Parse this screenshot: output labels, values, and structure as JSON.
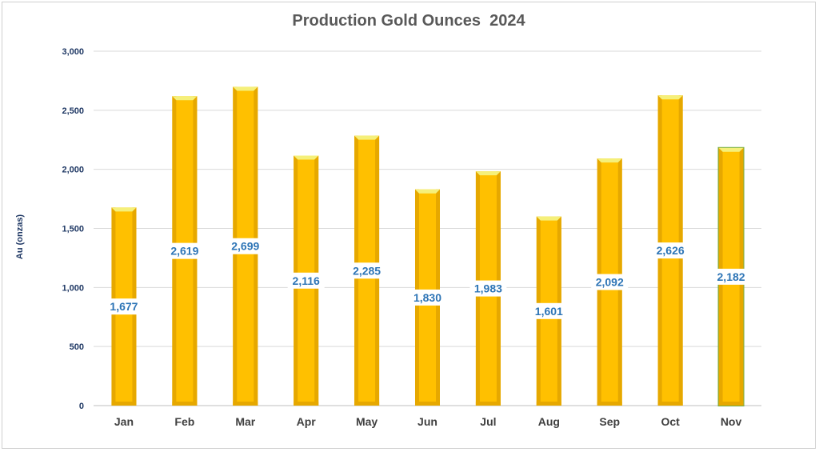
{
  "chart_data": {
    "type": "bar",
    "title": "Production Gold Ounces  2024",
    "xlabel": "",
    "ylabel": "Au (onzas)",
    "categories": [
      "Jan",
      "Feb",
      "Mar",
      "Apr",
      "May",
      "Jun",
      "Jul",
      "Aug",
      "Sep",
      "Oct",
      "Nov"
    ],
    "values": [
      1677,
      2619,
      2699,
      2116,
      2285,
      1830,
      1983,
      1601,
      2092,
      2626,
      2182
    ],
    "data_labels": [
      "1,677",
      "2,619",
      "2,699",
      "2,116",
      "2,285",
      "1,830",
      "1,983",
      "1,601",
      "2,092",
      "2,626",
      "2,182"
    ],
    "yticks": [
      "0",
      "500",
      "1,000",
      "1,500",
      "2,000",
      "2,500",
      "3,000"
    ],
    "ylim": [
      0,
      3000
    ],
    "grid": true,
    "legend": "none",
    "colors": {
      "bar": "#ffc000",
      "bar_edge": "#e6a800",
      "bar_top": "#f5f07a",
      "last_bar_border": "#70ad47",
      "label": "#2e75b6",
      "grid": "#d9d9d9"
    }
  }
}
